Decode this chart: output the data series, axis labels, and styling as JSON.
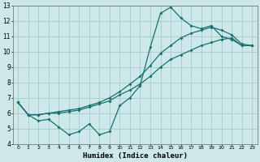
{
  "xlabel": "Humidex (Indice chaleur)",
  "xlim": [
    -0.5,
    23.5
  ],
  "ylim": [
    4,
    13
  ],
  "yticks": [
    4,
    5,
    6,
    7,
    8,
    9,
    10,
    11,
    12,
    13
  ],
  "xticks": [
    0,
    1,
    2,
    3,
    4,
    5,
    6,
    7,
    8,
    9,
    10,
    11,
    12,
    13,
    14,
    15,
    16,
    17,
    18,
    19,
    20,
    21,
    22,
    23
  ],
  "bg_color": "#cce8e8",
  "grid_color": "#aacece",
  "line_color": "#1a7070",
  "line1_x": [
    0,
    1,
    2,
    3,
    4,
    5,
    6,
    7,
    8,
    9,
    10,
    11,
    12,
    13,
    14,
    15,
    16,
    17,
    18,
    19,
    20,
    21,
    22,
    23
  ],
  "line1_y": [
    6.7,
    5.9,
    5.5,
    5.6,
    5.1,
    4.6,
    4.8,
    5.3,
    4.6,
    4.8,
    6.5,
    7.0,
    7.8,
    10.3,
    12.5,
    12.9,
    12.2,
    11.7,
    11.5,
    11.7,
    11.0,
    10.8,
    10.4,
    10.4
  ],
  "line2_x": [
    0,
    1,
    2,
    3,
    4,
    5,
    6,
    7,
    8,
    9,
    10,
    11,
    12,
    13,
    14,
    15,
    16,
    17,
    18,
    19,
    20,
    21,
    22,
    23
  ],
  "line2_y": [
    6.7,
    5.9,
    5.9,
    6.0,
    6.0,
    6.1,
    6.2,
    6.4,
    6.6,
    6.8,
    7.2,
    7.5,
    7.9,
    8.4,
    9.0,
    9.5,
    9.8,
    10.1,
    10.4,
    10.6,
    10.8,
    10.9,
    10.4,
    10.4
  ],
  "line3_x": [
    0,
    1,
    2,
    3,
    4,
    5,
    6,
    7,
    8,
    9,
    10,
    11,
    12,
    13,
    14,
    15,
    16,
    17,
    18,
    19,
    20,
    21,
    22,
    23
  ],
  "line3_y": [
    6.7,
    5.9,
    5.9,
    6.0,
    6.1,
    6.2,
    6.3,
    6.5,
    6.7,
    7.0,
    7.4,
    7.9,
    8.4,
    9.1,
    9.9,
    10.4,
    10.9,
    11.2,
    11.4,
    11.6,
    11.4,
    11.1,
    10.5,
    10.4
  ]
}
